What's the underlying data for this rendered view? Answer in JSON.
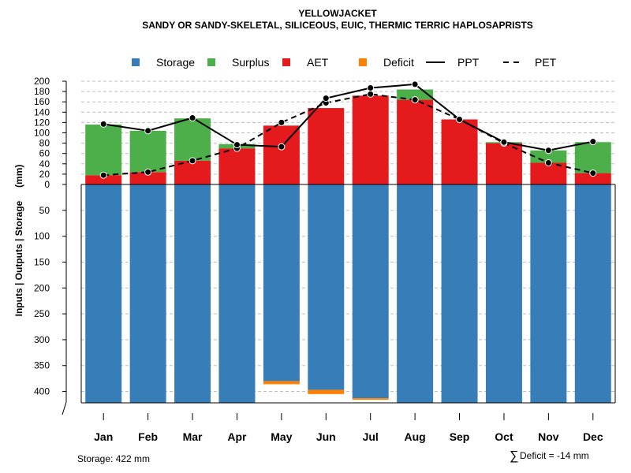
{
  "chart_data": {
    "type": "bar",
    "title": "YELLOWJACKET",
    "subtitle": "SANDY OR SANDY-SKELETAL, SILICEOUS, EUIC, THERMIC TERRIC HAPLOSAPRISTS",
    "ylabel": "Inputs | Outputs | Storage     (mm)",
    "categories": [
      "Jan",
      "Feb",
      "Mar",
      "Apr",
      "May",
      "Jun",
      "Jul",
      "Aug",
      "Sep",
      "Oct",
      "Nov",
      "Dec"
    ],
    "upper_ylim": [
      0,
      200
    ],
    "upper_ticks": [
      "0",
      "20",
      "40",
      "60",
      "80",
      "100",
      "120",
      "140",
      "160",
      "180",
      "200"
    ],
    "lower_ylim": [
      0,
      422
    ],
    "lower_ticks": [
      "50",
      "100",
      "150",
      "200",
      "250",
      "300",
      "350",
      "400"
    ],
    "storage_capacity": 422,
    "series": [
      {
        "name": "Storage",
        "color": "#377EB8",
        "values": [
          422,
          422,
          422,
          422,
          380,
          397,
          413,
          422,
          422,
          422,
          422,
          422
        ]
      },
      {
        "name": "Surplus",
        "color": "#4DAF4A",
        "values": [
          98,
          80,
          82,
          8,
          0,
          0,
          0,
          20,
          0,
          2,
          24,
          60
        ]
      },
      {
        "name": "AET",
        "color": "#E41A1C",
        "values": [
          18,
          24,
          46,
          70,
          114,
          148,
          172,
          164,
          126,
          80,
          42,
          22
        ]
      },
      {
        "name": "Deficit",
        "color": "#FF7F00",
        "values": [
          0,
          0,
          0,
          0,
          -6,
          -8,
          -1,
          0,
          0,
          0,
          0,
          0
        ]
      },
      {
        "name": "PPT",
        "line": "solid",
        "values": [
          117,
          104,
          129,
          77,
          73,
          167,
          187,
          194,
          126,
          82,
          66,
          83
        ]
      },
      {
        "name": "PET",
        "line": "dashed",
        "values": [
          18,
          24,
          46,
          70,
          120,
          158,
          175,
          164,
          126,
          80,
          42,
          22
        ]
      }
    ],
    "gridlines": true
  },
  "legend": {
    "items": [
      {
        "label": "Storage",
        "kind": "square",
        "color": "#377EB8"
      },
      {
        "label": "Surplus",
        "kind": "square",
        "color": "#4DAF4A"
      },
      {
        "label": "AET",
        "kind": "square",
        "color": "#E41A1C"
      },
      {
        "label": "Deficit",
        "kind": "square",
        "color": "#FF7F00"
      },
      {
        "label": "PPT",
        "kind": "solid-line",
        "color": "#000000"
      },
      {
        "label": "PET",
        "kind": "dashed-line",
        "color": "#000000"
      }
    ]
  },
  "footer": {
    "storage_text": "Storage: 422 mm",
    "deficit_symbol": "∑",
    "deficit_text": "Deficit = -14 mm"
  }
}
